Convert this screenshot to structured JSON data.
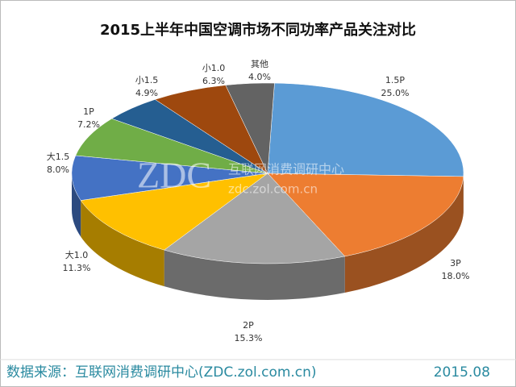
{
  "chart_data": {
    "type": "pie3d",
    "title": "2015上半年中国空调市场不同功率产品关注对比",
    "categories": [
      "1.5P",
      "3P",
      "2P",
      "大1.0",
      "大1.5",
      "1P",
      "小1.5",
      "小1.0",
      "其他"
    ],
    "values": [
      25.0,
      18.0,
      15.3,
      11.3,
      8.0,
      7.2,
      4.9,
      6.3,
      4.0
    ],
    "value_labels": [
      "25.0%",
      "18.0%",
      "15.3%",
      "11.3%",
      "8.0%",
      "7.2%",
      "4.9%",
      "6.3%",
      "4.0%"
    ],
    "colors": [
      "#5b9bd5",
      "#ed7d31",
      "#a5a5a5",
      "#ffc000",
      "#4472c4",
      "#70ad47",
      "#255e91",
      "#9e480e",
      "#636363"
    ]
  },
  "watermark": {
    "logo": "ZDC",
    "name": "互联网消费调研中心",
    "url": "zdc.zol.com.cn"
  },
  "footer": {
    "source": "数据来源：互联网消费调研中心(ZDC.zol.com.cn)",
    "date": "2015.08"
  }
}
